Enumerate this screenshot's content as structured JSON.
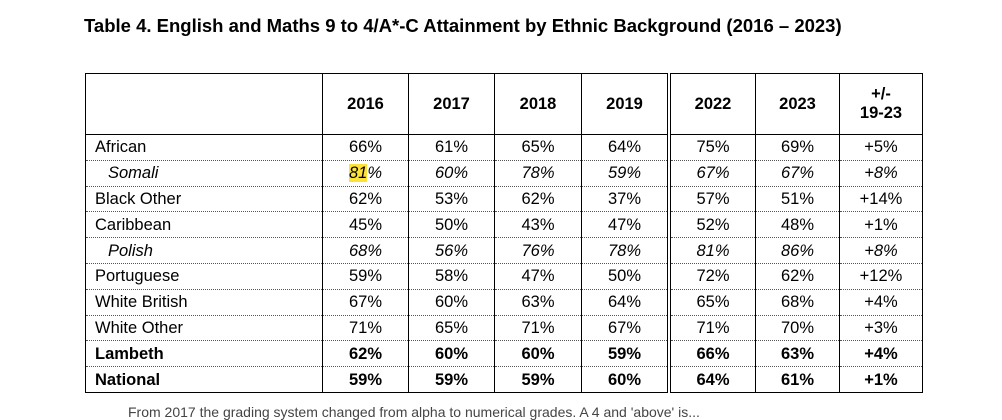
{
  "title": "Table 4. English and Maths 9 to 4/A*-C Attainment by Ethnic Background (2016 – 2023)",
  "header": {
    "blank": "",
    "years": [
      "2016",
      "2017",
      "2018",
      "2019",
      "2022",
      "2023"
    ],
    "change_line1": "+/-",
    "change_line2": "19-23"
  },
  "rows": [
    {
      "label": "African",
      "vals": [
        "66%",
        "61%",
        "65%",
        "64%",
        "75%",
        "69%"
      ],
      "change": "+5%",
      "style": "normal"
    },
    {
      "label": "Somali",
      "vals": [
        "81%",
        "60%",
        "78%",
        "59%",
        "67%",
        "67%"
      ],
      "change": "+8%",
      "style": "italic",
      "highlight_first_value_prefix": "81"
    },
    {
      "label": "Black Other",
      "vals": [
        "62%",
        "53%",
        "62%",
        "37%",
        "57%",
        "51%"
      ],
      "change": "+14%",
      "style": "normal"
    },
    {
      "label": "Caribbean",
      "vals": [
        "45%",
        "50%",
        "43%",
        "47%",
        "52%",
        "48%"
      ],
      "change": "+1%",
      "style": "normal"
    },
    {
      "label": "Polish",
      "vals": [
        "68%",
        "56%",
        "76%",
        "78%",
        "81%",
        "86%"
      ],
      "change": "+8%",
      "style": "italic"
    },
    {
      "label": "Portuguese",
      "vals": [
        "59%",
        "58%",
        "47%",
        "50%",
        "72%",
        "62%"
      ],
      "change": "+12%",
      "style": "normal"
    },
    {
      "label": "White British",
      "vals": [
        "67%",
        "60%",
        "63%",
        "64%",
        "65%",
        "68%"
      ],
      "change": "+4%",
      "style": "normal"
    },
    {
      "label": "White Other",
      "vals": [
        "71%",
        "65%",
        "71%",
        "67%",
        "71%",
        "70%"
      ],
      "change": "+3%",
      "style": "normal"
    },
    {
      "label": "Lambeth",
      "vals": [
        "62%",
        "60%",
        "60%",
        "59%",
        "66%",
        "63%"
      ],
      "change": "+4%",
      "style": "bold"
    },
    {
      "label": "National",
      "vals": [
        "59%",
        "59%",
        "59%",
        "60%",
        "64%",
        "61%"
      ],
      "change": "+1%",
      "style": "bold"
    }
  ],
  "footnote": "From 2017 the grading system changed from alpha to numerical grades. A 4 and 'above' is..."
}
